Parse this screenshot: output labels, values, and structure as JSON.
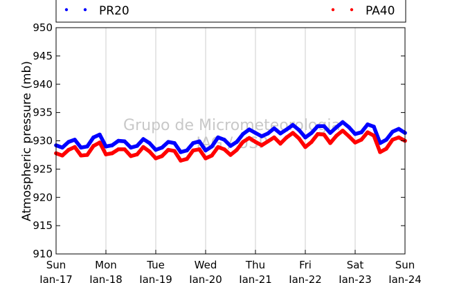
{
  "chart_data": {
    "type": "line",
    "ylabel": "Atmospheric pressure (mb)",
    "xlabel": "",
    "ylim": [
      910,
      950
    ],
    "yticks": [
      910,
      915,
      920,
      925,
      930,
      935,
      940,
      945,
      950
    ],
    "xlim": [
      0,
      7
    ],
    "xticks": [
      {
        "x": 0,
        "day": "Sun",
        "date": "Jan-17"
      },
      {
        "x": 1,
        "day": "Mon",
        "date": "Jan-18"
      },
      {
        "x": 2,
        "day": "Tue",
        "date": "Jan-19"
      },
      {
        "x": 3,
        "day": "Wed",
        "date": "Jan-20"
      },
      {
        "x": 4,
        "day": "Thu",
        "date": "Jan-21"
      },
      {
        "x": 5,
        "day": "Fri",
        "date": "Jan-22"
      },
      {
        "x": 6,
        "day": "Sat",
        "date": "Jan-23"
      },
      {
        "x": 7,
        "day": "Sun",
        "date": "Jan-24"
      }
    ],
    "grid": "vertical",
    "legend_position": "top",
    "watermark": [
      "Grupo de Micrometeorologia",
      "IAG / USP"
    ],
    "series": [
      {
        "name": "PR20",
        "color": "#0000ff",
        "x": [
          0,
          0.125,
          0.25,
          0.375,
          0.5,
          0.625,
          0.75,
          0.875,
          1,
          1.125,
          1.25,
          1.375,
          1.5,
          1.625,
          1.75,
          1.875,
          2,
          2.125,
          2.25,
          2.375,
          2.5,
          2.625,
          2.75,
          2.875,
          3,
          3.125,
          3.25,
          3.375,
          3.5,
          3.625,
          3.75,
          3.875,
          4,
          4.125,
          4.25,
          4.375,
          4.5,
          4.625,
          4.75,
          4.875,
          5,
          5.125,
          5.25,
          5.375,
          5.5,
          5.625,
          5.75,
          5.875,
          6,
          6.125,
          6.25,
          6.375,
          6.5,
          6.625,
          6.75,
          6.875,
          7
        ],
        "y": [
          929.2,
          928.8,
          929.8,
          930.2,
          928.8,
          929.0,
          930.6,
          931.1,
          929.0,
          929.2,
          930.0,
          929.9,
          928.8,
          929.1,
          930.3,
          929.6,
          928.4,
          928.8,
          929.8,
          929.6,
          928.0,
          928.3,
          929.6,
          929.9,
          928.3,
          929.0,
          930.6,
          930.2,
          929.1,
          929.8,
          931.2,
          932.0,
          931.4,
          930.8,
          931.3,
          932.2,
          931.3,
          932.0,
          932.8,
          931.9,
          930.6,
          931.4,
          932.6,
          932.6,
          931.4,
          932.4,
          933.3,
          932.4,
          931.2,
          931.5,
          932.9,
          932.5,
          929.6,
          930.2,
          931.6,
          932.1,
          931.4
        ]
      },
      {
        "name": "PA40",
        "color": "#ff0000",
        "x": [
          0,
          0.125,
          0.25,
          0.375,
          0.5,
          0.625,
          0.75,
          0.875,
          1,
          1.125,
          1.25,
          1.375,
          1.5,
          1.625,
          1.75,
          1.875,
          2,
          2.125,
          2.25,
          2.375,
          2.5,
          2.625,
          2.75,
          2.875,
          3,
          3.125,
          3.25,
          3.375,
          3.5,
          3.625,
          3.75,
          3.875,
          4,
          4.125,
          4.25,
          4.375,
          4.5,
          4.625,
          4.75,
          4.875,
          5,
          5.125,
          5.25,
          5.375,
          5.5,
          5.625,
          5.75,
          5.875,
          6,
          6.125,
          6.25,
          6.375,
          6.5,
          6.625,
          6.75,
          6.875,
          7
        ],
        "y": [
          927.8,
          927.4,
          928.4,
          928.9,
          927.4,
          927.5,
          929.1,
          929.7,
          927.6,
          927.8,
          928.5,
          928.5,
          927.3,
          927.6,
          928.9,
          928.1,
          926.9,
          927.3,
          928.4,
          928.2,
          926.5,
          926.8,
          928.3,
          928.5,
          926.9,
          927.4,
          928.9,
          928.5,
          927.5,
          928.4,
          929.8,
          930.5,
          929.8,
          929.2,
          929.9,
          930.6,
          929.5,
          930.6,
          931.4,
          930.4,
          928.9,
          929.8,
          931.2,
          931.1,
          929.6,
          930.9,
          931.8,
          930.8,
          929.7,
          930.2,
          931.5,
          930.9,
          928.0,
          928.6,
          930.2,
          930.6,
          930.0
        ]
      }
    ]
  }
}
